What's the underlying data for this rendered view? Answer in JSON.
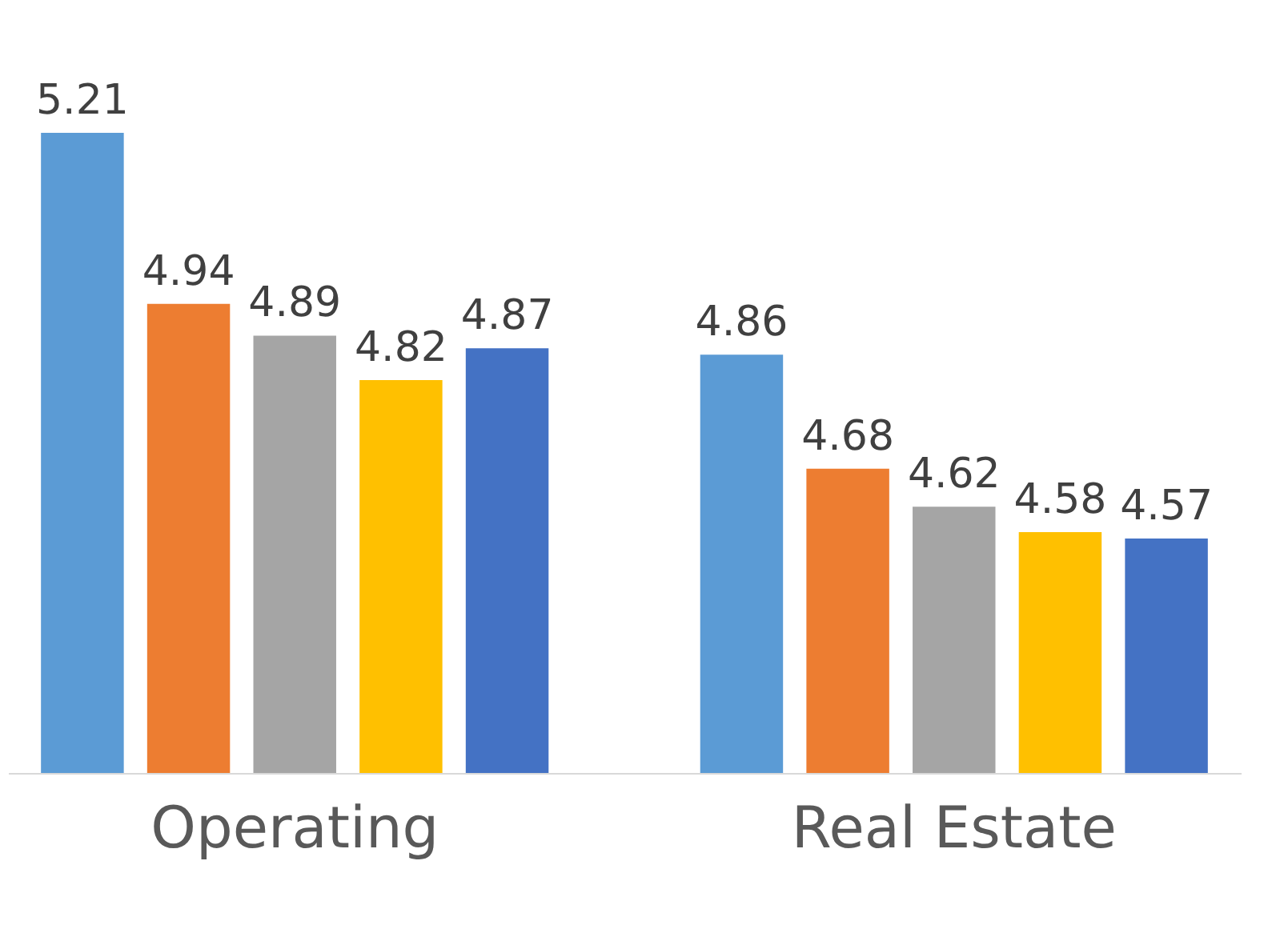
{
  "chart_data": {
    "type": "bar",
    "categories": [
      "Operating",
      "Real Estate"
    ],
    "series": [
      {
        "color": "#5b9bd5",
        "values": [
          5.21,
          4.86
        ]
      },
      {
        "color": "#ed7d31",
        "values": [
          4.94,
          4.68
        ]
      },
      {
        "color": "#a5a5a5",
        "values": [
          4.89,
          4.62
        ]
      },
      {
        "color": "#ffc000",
        "values": [
          4.82,
          4.58
        ]
      },
      {
        "color": "#4472c4",
        "values": [
          4.87,
          4.57
        ]
      }
    ],
    "ylim": [
      4.2,
      5.21
    ],
    "data_labels": true,
    "grid": false,
    "legend": false,
    "tick_labels": "x"
  }
}
